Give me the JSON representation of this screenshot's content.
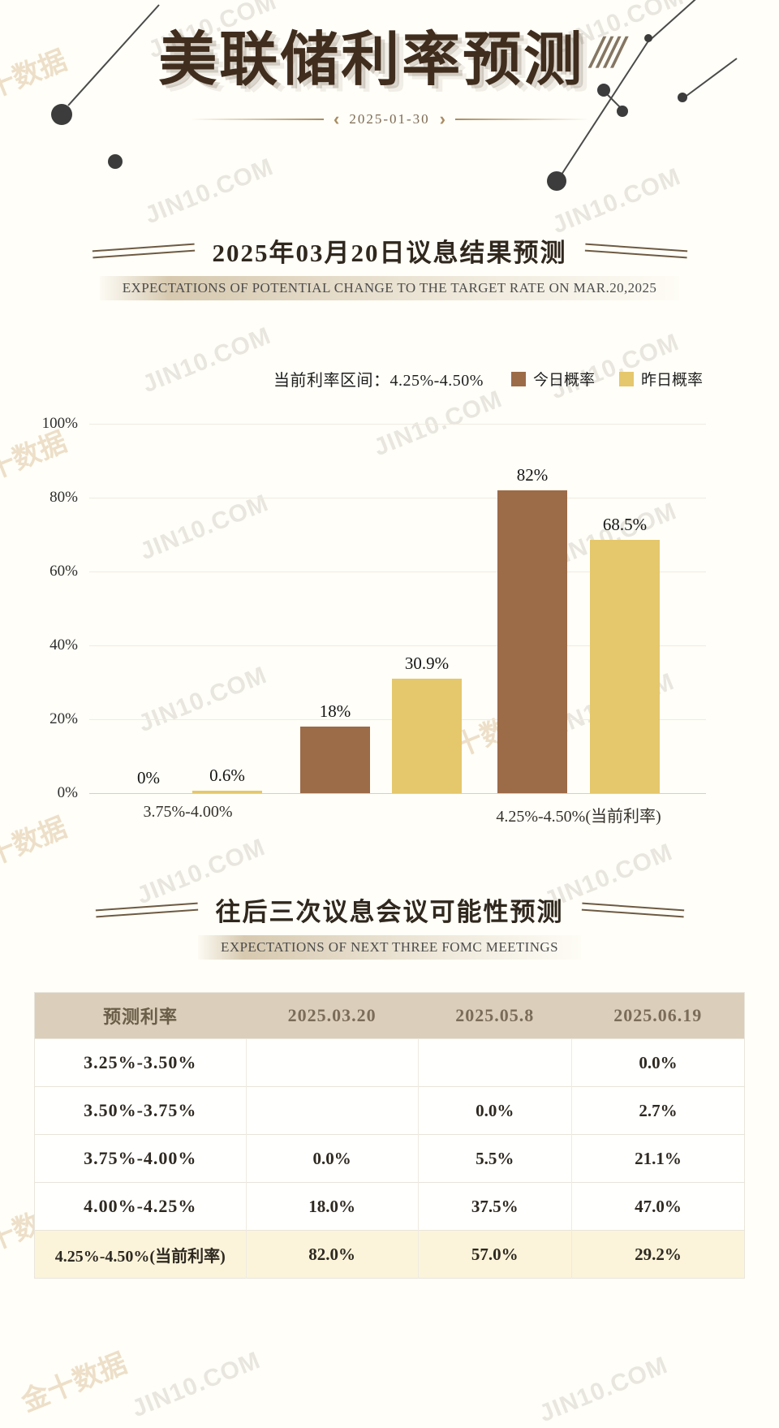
{
  "page": {
    "title": "美联储利率预测",
    "title_decor": "////",
    "date": "2025-01-30"
  },
  "icons": {
    "date_arrow_left": "‹",
    "date_arrow_right": "›"
  },
  "watermarks": {
    "primary": "JIN10.COM",
    "secondary": "金十数据"
  },
  "section1": {
    "title": "2025年03月20日议息结果预测",
    "subtitle": "EXPECTATIONS OF POTENTIAL CHANGE TO THE TARGET RATE ON MAR.20,2025"
  },
  "section2": {
    "title": "往后三次议息会议可能性预测",
    "subtitle": "EXPECTATIONS OF NEXT THREE FOMC MEETINGS"
  },
  "chart_data": {
    "type": "bar",
    "note": "当前利率区间：4.25%-4.50%",
    "ylim": [
      0,
      100
    ],
    "yticks": [
      "100%",
      "80%",
      "60%",
      "40%",
      "20%",
      "0%"
    ],
    "grid": true,
    "legend_position": "top-right",
    "group_count": 3,
    "x_axis_labels": [
      {
        "text": "3.75%-4.00%",
        "group": 0
      },
      {
        "text": "4.25%-4.50%(当前利率)",
        "group": 2
      }
    ],
    "series": [
      {
        "name": "今日概率",
        "color": "#9c6b48",
        "values": [
          0,
          18,
          82
        ],
        "labels": [
          "0%",
          "18%",
          "82%"
        ]
      },
      {
        "name": "昨日概率",
        "color": "#e5c76c",
        "values": [
          0.6,
          30.9,
          68.5
        ],
        "labels": [
          "0.6%",
          "30.9%",
          "68.5%"
        ]
      }
    ]
  },
  "table": {
    "headers": [
      "预测利率",
      "2025.03.20",
      "2025.05.8",
      "2025.06.19"
    ],
    "rows": [
      {
        "rate": "3.25%-3.50%",
        "values": [
          "",
          "",
          "0.0%"
        ],
        "highlight": false
      },
      {
        "rate": "3.50%-3.75%",
        "values": [
          "",
          "0.0%",
          "2.7%"
        ],
        "highlight": false
      },
      {
        "rate": "3.75%-4.00%",
        "values": [
          "0.0%",
          "5.5%",
          "21.1%"
        ],
        "highlight": false
      },
      {
        "rate": "4.00%-4.25%",
        "values": [
          "18.0%",
          "37.5%",
          "47.0%"
        ],
        "highlight": false
      },
      {
        "rate": "4.25%-4.50%(当前利率)",
        "values": [
          "82.0%",
          "57.0%",
          "29.2%"
        ],
        "highlight": true
      }
    ]
  },
  "colors": {
    "today_bar": "#9c6b48",
    "yesterday_bar": "#e5c76c",
    "table_header_bg": "#dbceba",
    "highlight_row_bg": "#fcf4da"
  }
}
